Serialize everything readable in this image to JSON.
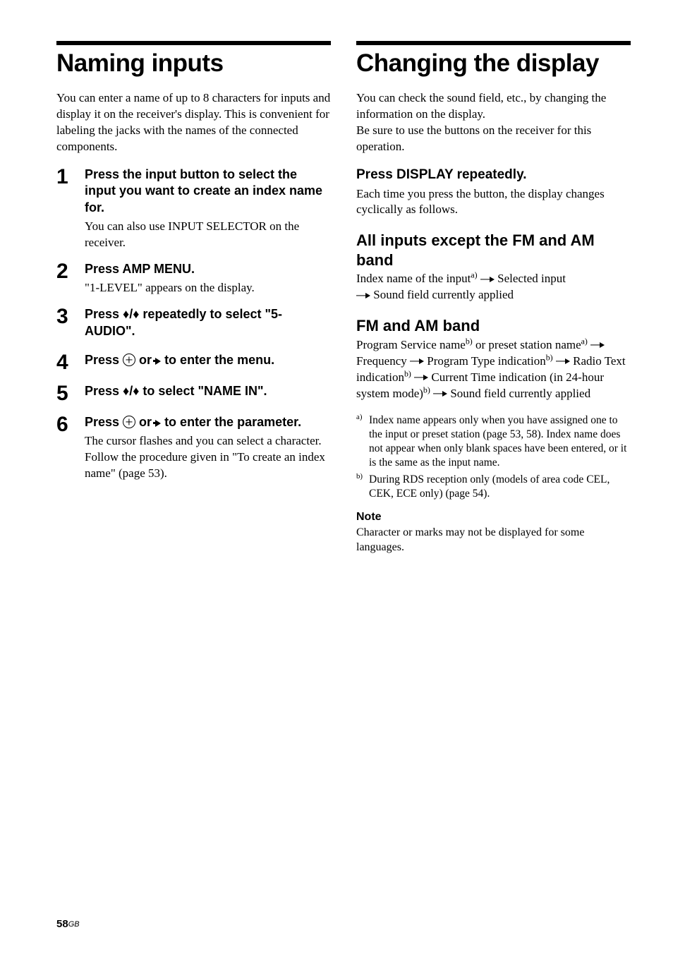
{
  "left": {
    "title": "Naming inputs",
    "intro": "You can enter a name of up to 8 characters for inputs and display it on the receiver's display. This is convenient for labeling the jacks with the names of the connected components.",
    "steps": [
      {
        "num": "1",
        "head": "Press the input button to select the input you want to create an index name for.",
        "desc": "You can also use INPUT SELECTOR on the receiver."
      },
      {
        "num": "2",
        "head": "Press AMP MENU.",
        "desc": "\"1-LEVEL\" appears on the display."
      },
      {
        "num": "3",
        "head_pre": "Press ",
        "head_post": " repeatedly to select \"5-AUDIO\".",
        "desc": ""
      },
      {
        "num": "4",
        "head_pre": "Press  ",
        "head_mid": "  or ",
        "head_post": " to enter the menu.",
        "desc": ""
      },
      {
        "num": "5",
        "head_pre": "Press ",
        "head_post": " to select \"NAME IN\".",
        "desc": ""
      },
      {
        "num": "6",
        "head_pre": "Press  ",
        "head_mid": "  or ",
        "head_post": " to enter the parameter.",
        "desc": "The cursor flashes and you can select a character. Follow the procedure given in \"To create an index name\" (page 53)."
      }
    ]
  },
  "right": {
    "title": "Changing the display",
    "intro1": "You can check the sound field, etc., by changing the information on the display.",
    "intro2": "Be sure to use the buttons on the receiver for this operation.",
    "press_head": "Press DISPLAY repeatedly.",
    "press_body": "Each time you press the button, the display changes cyclically as follows.",
    "sub1_head": "All inputs except the FM and AM band",
    "sub1_parts": {
      "a": "Index name of the input",
      "b": " Selected input ",
      "c": " Sound field currently applied"
    },
    "sub2_head": "FM and AM band",
    "sub2_parts": {
      "a": "Program Service name",
      "b": " or preset station name",
      "c": " Frequency ",
      "d": " Program Type indication",
      "e": " Radio Text indication",
      "f": " Current Time indication (in 24-hour system mode)",
      "g": " Sound field currently applied"
    },
    "footnotes": {
      "a_mark": "a)",
      "a_text": "Index name appears only when you have assigned one to the input or preset station (page 53, 58). Index name does not appear when only blank spaces have been entered, or it is the same as the input name.",
      "b_mark": "b)",
      "b_text": "During RDS reception only (models of area code CEL, CEK, ECE only) (page 54)."
    },
    "note_head": "Note",
    "note_body": "Character or marks may not be displayed for some languages."
  },
  "page": {
    "num": "58",
    "suffix": "GB"
  }
}
